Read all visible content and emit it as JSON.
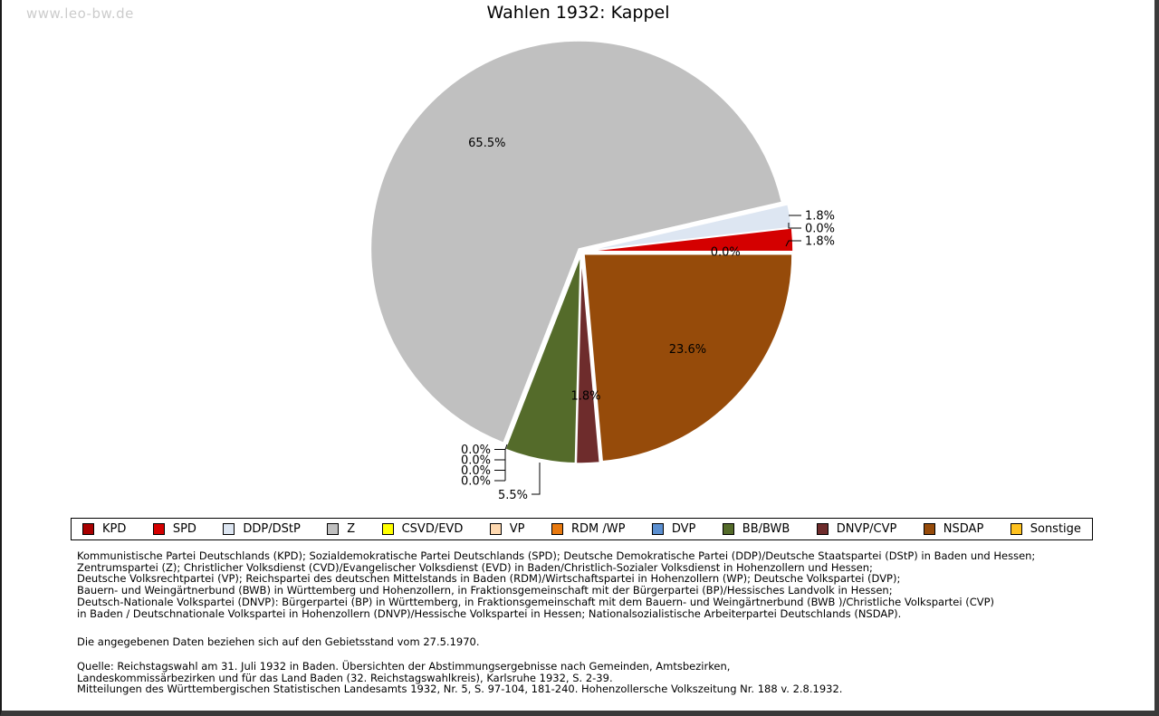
{
  "header": {
    "watermark": "www.leo-bw.de",
    "title": "Wahlen 1932: Kappel"
  },
  "chart_data": {
    "type": "pie",
    "title": "Wahlen 1932: Kappel",
    "unit": "%",
    "start_angle_deg": 0,
    "direction": "counterclockwise",
    "legend_position": "bottom",
    "slices": [
      {
        "party": "KPD",
        "value": 0.0,
        "color": "#a80000",
        "label": {
          "placement": "inside"
        }
      },
      {
        "party": "SPD",
        "value": 1.8,
        "color": "#d40000",
        "label": {
          "placement": "right",
          "row": 2
        }
      },
      {
        "party": "DDP/DStP",
        "value": 1.8,
        "color": "#dde6f2",
        "label": {
          "placement": "right",
          "row": 0
        }
      },
      {
        "party": "Z",
        "value": 65.5,
        "color": "#c0c0c0",
        "label": {
          "placement": "inside"
        }
      },
      {
        "party": "CSVD/EVD",
        "value": 0.0,
        "color": "#ffff00",
        "label": {
          "placement": "left",
          "row": 0
        }
      },
      {
        "party": "VP",
        "value": 0.0,
        "color": "#ffd9b0",
        "label": {
          "placement": "left",
          "row": 1
        }
      },
      {
        "party": "RDM /WP",
        "value": 0.0,
        "color": "#e8790f",
        "label": {
          "placement": "left",
          "row": 2
        }
      },
      {
        "party": "DVP",
        "value": 0.0,
        "color": "#5b8fd0",
        "label": {
          "placement": "left",
          "row": 3
        }
      },
      {
        "party": "BB/BWB",
        "value": 5.5,
        "color": "#546b2a",
        "label": {
          "placement": "below"
        }
      },
      {
        "party": "DNVP/CVP",
        "value": 1.8,
        "color": "#6e2c2c",
        "label": {
          "placement": "inside"
        }
      },
      {
        "party": "NSDAP",
        "value": 23.6,
        "color": "#964b0a",
        "label": {
          "placement": "inside"
        }
      },
      {
        "party": "Sonstige",
        "value": 0.0,
        "color": "#ffc220",
        "label": {
          "placement": "right",
          "row": 1
        }
      }
    ]
  },
  "notes": {
    "party_description_lines": [
      "Kommunistische Partei Deutschlands (KPD); Sozialdemokratische Partei Deutschlands (SPD); Deutsche Demokratische Partei (DDP)/Deutsche Staatspartei (DStP) in Baden und Hessen;",
      "Zentrumspartei (Z); Christlicher Volksdienst (CVD)/Evangelischer Volksdienst (EVD) in Baden/Christlich-Sozialer Volksdienst in Hohenzollern und Hessen;",
      "Deutsche Volksrechtpartei (VP); Reichspartei des deutschen Mittelstands in Baden (RDM)/Wirtschaftspartei in Hohenzollern (WP); Deutsche Volkspartei (DVP);",
      "Bauern- und Weingärtnerbund (BWB) in Württemberg und Hohenzollern, in Fraktionsgemeinschaft mit der Bürgerpartei (BP)/Hessisches Landvolk in Hessen;",
      "Deutsch-Nationale Volkspartei (DNVP): Bürgerpartei (BP) in Württemberg, in Fraktionsgemeinschaft mit dem Bauern- und Weingärtnerbund (BWB )/Christliche Volkspartei (CVP)",
      "in Baden / Deutschnationale Volkspartei in Hohenzollern (DNVP)/Hessische Volkspartei in Hessen; Nationalsozialistische Arbeiterpartei Deutschlands (NSDAP)."
    ],
    "gebietsstand": "Die angegebenen Daten beziehen sich auf den Gebietsstand vom 27.5.1970.",
    "quelle_lines": [
      "Quelle: Reichstagswahl am 31. Juli 1932 in Baden. Übersichten der Abstimmungsergebnisse nach Gemeinden, Amtsbezirken,",
      "Landeskommissärbezirken und für das Land Baden (32. Reichstagswahlkreis), Karlsruhe 1932, S. 2-39.",
      "Mitteilungen des Württembergischen Statistischen Landesamts 1932, Nr. 5, S. 97-104, 181-240. Hohenzollersche Volkszeitung Nr. 188 v. 2.8.1932."
    ]
  }
}
